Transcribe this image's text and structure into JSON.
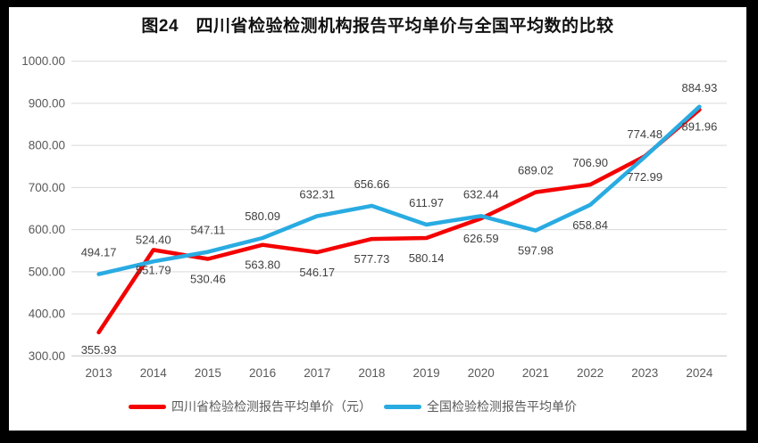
{
  "title": "图24　四川省检验检测机构报告平均单价与全国平均数的比较",
  "chart_data": {
    "type": "line",
    "title": "图24　四川省检验检测机构报告平均单价与全国平均数的比较",
    "categories": [
      "2013",
      "2014",
      "2015",
      "2016",
      "2017",
      "2018",
      "2019",
      "2020",
      "2021",
      "2022",
      "2023",
      "2024"
    ],
    "series": [
      {
        "name": "四川省检验检测报告平均单价（元）",
        "color": "#f40000",
        "values": [
          355.93,
          551.79,
          530.46,
          563.8,
          546.17,
          577.73,
          580.14,
          626.59,
          689.02,
          706.9,
          774.48,
          884.93
        ],
        "label_positions": [
          "below",
          "below",
          "below",
          "below",
          "below",
          "below",
          "below",
          "below",
          "above",
          "above",
          "above",
          "above"
        ]
      },
      {
        "name": "全国检验检测报告平均单价",
        "color": "#29abe2",
        "values": [
          494.17,
          524.4,
          547.11,
          580.09,
          632.31,
          656.66,
          611.97,
          632.44,
          597.98,
          658.84,
          772.99,
          891.96
        ],
        "label_positions": [
          "above",
          "above",
          "above",
          "above",
          "above",
          "above",
          "above",
          "above",
          "below",
          "below",
          "below",
          "below"
        ]
      }
    ],
    "ylim": [
      300,
      1000
    ],
    "ytick_step": 100,
    "ytick_labels": [
      "300.00",
      "400.00",
      "500.00",
      "600.00",
      "700.00",
      "800.00",
      "900.00",
      "1000.00"
    ],
    "value_label_decimals": 2,
    "grid": true,
    "legend_position": "bottom"
  },
  "colors": {
    "frame": "#000000",
    "background": "#ffffff",
    "gridline": "#d9d9d9",
    "axis_line": "#c6c6c6",
    "axis_text": "#595959",
    "data_label_text": "#404040",
    "title_text": "#111111"
  }
}
